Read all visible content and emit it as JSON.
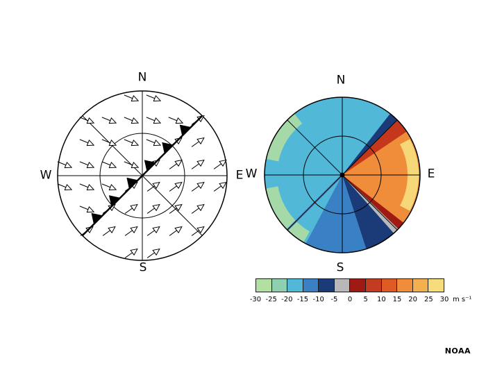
{
  "figure": {
    "credit": "NOAA"
  },
  "left_panel": {
    "kind": "wind-field-with-front",
    "labels": {
      "n": "N",
      "e": "E",
      "s": "S",
      "w": "W"
    }
  },
  "right_panel": {
    "kind": "doppler-radial-velocity-display",
    "labels": {
      "n": "N",
      "e": "E",
      "s": "S",
      "w": "W"
    }
  },
  "colorbar": {
    "ticks": [
      "-30",
      "-25",
      "-20",
      "-15",
      "-10",
      "-5",
      "0",
      "5",
      "10",
      "15",
      "20",
      "25",
      "30"
    ],
    "unit": "m s⁻¹",
    "colors": [
      "#b2e0a2",
      "#8fd0b0",
      "#52b8d8",
      "#3a80c4",
      "#1a3a78",
      "#b8b8b8",
      "#9e1a12",
      "#c33b20",
      "#e05a24",
      "#ef8d3b",
      "#f4b04e",
      "#f7dc7c"
    ]
  }
}
